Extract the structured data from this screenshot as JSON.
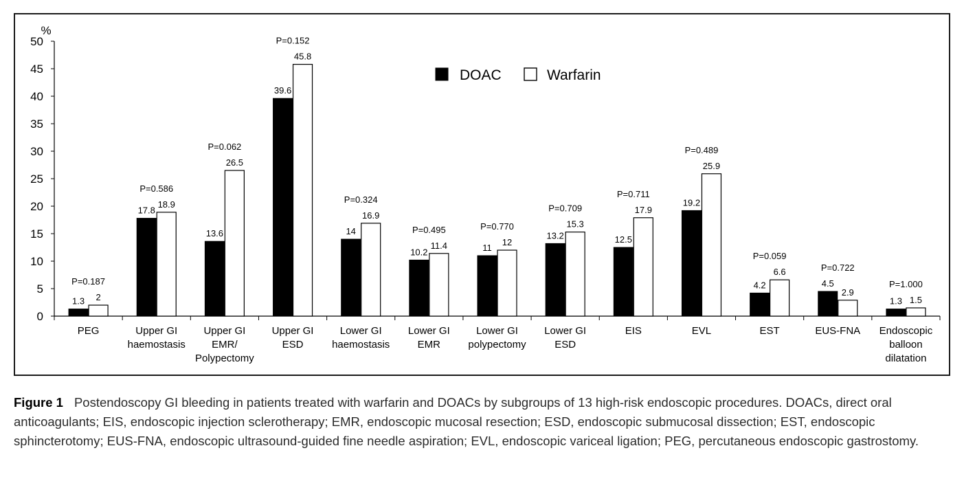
{
  "chart_data": {
    "type": "bar",
    "unit_label": "%",
    "ylim": [
      0,
      50
    ],
    "yticks": [
      0,
      5,
      10,
      15,
      20,
      25,
      30,
      35,
      40,
      45,
      50
    ],
    "grid": false,
    "legend_position": "top-center",
    "categories": [
      [
        "PEG"
      ],
      [
        "Upper GI",
        "haemostasis"
      ],
      [
        "Upper GI",
        "EMR/",
        "Polypectomy"
      ],
      [
        "Upper GI",
        "ESD"
      ],
      [
        "Lower GI",
        "haemostasis"
      ],
      [
        "Lower GI",
        "EMR"
      ],
      [
        "Lower GI",
        "polypectomy"
      ],
      [
        "Lower GI",
        "ESD"
      ],
      [
        "EIS"
      ],
      [
        "EVL"
      ],
      [
        "EST"
      ],
      [
        "EUS-FNA"
      ],
      [
        "Endoscopic",
        "balloon",
        "dilatation"
      ]
    ],
    "series": [
      {
        "name": "DOAC",
        "color": "#000000",
        "values": [
          1.3,
          17.8,
          13.6,
          39.6,
          14,
          10.2,
          11,
          13.2,
          12.5,
          19.2,
          4.2,
          4.5,
          1.3
        ],
        "labels": [
          "1.3",
          "17.8",
          "13.6",
          "39.6",
          "14",
          "10.2",
          "11",
          "13.2",
          "12.5",
          "19.2",
          "4.2",
          "4.5",
          "1.3"
        ]
      },
      {
        "name": "Warfarin",
        "color": "#ffffff",
        "values": [
          2,
          18.9,
          26.5,
          45.8,
          16.9,
          11.4,
          12,
          15.3,
          17.9,
          25.9,
          6.6,
          2.9,
          1.5
        ],
        "labels": [
          "2",
          "18.9",
          "26.5",
          "45.8",
          "16.9",
          "11.4",
          "12",
          "15.3",
          "17.9",
          "25.9",
          "6.6",
          "2.9",
          "1.5"
        ]
      }
    ],
    "p_values": [
      "P=0.187",
      "P=0.586",
      "P=0.062",
      "P=0.152",
      "P=0.324",
      "P=0.495",
      "P=0.770",
      "P=0.709",
      "P=0.711",
      "P=0.489",
      "P=0.059",
      "P=0.722",
      "P=1.000"
    ]
  },
  "caption": {
    "label": "Figure 1",
    "text": "Postendoscopy GI bleeding in patients treated with warfarin and DOACs by subgroups of 13 high-risk endoscopic procedures. DOACs, direct oral anticoagulants; EIS, endoscopic injection sclerotherapy; EMR, endoscopic mucosal resection; ESD, endoscopic submucosal dissection; EST, endoscopic sphincterotomy; EUS-FNA, endoscopic ultrasound-guided fine needle aspiration; EVL, endoscopic variceal ligation; PEG, percutaneous endoscopic gastrostomy."
  }
}
